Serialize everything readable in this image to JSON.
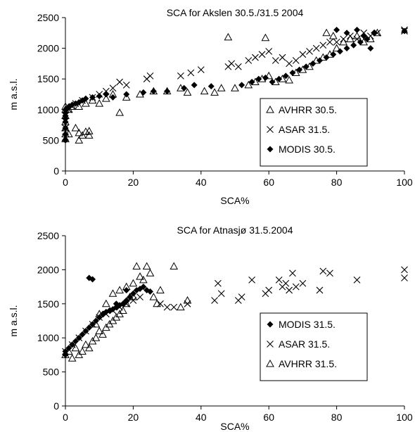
{
  "chart_data": [
    {
      "type": "scatter",
      "title": "SCA for Akslen 30.5./31.5 2004",
      "xlabel": "SCA%",
      "ylabel": "m a.s.l.",
      "xlim": [
        0,
        100
      ],
      "ylim": [
        0,
        2500
      ],
      "xticks": [
        "0",
        "20",
        "40",
        "60",
        "80",
        "100"
      ],
      "yticks": [
        "0",
        "500",
        "1000",
        "1500",
        "2000",
        "2500"
      ],
      "grid": false,
      "legend_placement": "bottom-right",
      "series": [
        {
          "name": "AVHRR 30.5.",
          "marker": "triangle-open",
          "points": [
            [
              0,
              520
            ],
            [
              0,
              600
            ],
            [
              0,
              700
            ],
            [
              0,
              800
            ],
            [
              0,
              900
            ],
            [
              0,
              1000
            ],
            [
              0,
              1050
            ],
            [
              1,
              600
            ],
            [
              1,
              1000
            ],
            [
              2,
              1050
            ],
            [
              3,
              700
            ],
            [
              4,
              500
            ],
            [
              4,
              620
            ],
            [
              5,
              580
            ],
            [
              6,
              640
            ],
            [
              7,
              580
            ],
            [
              7,
              650
            ],
            [
              4,
              1050
            ],
            [
              6,
              1100
            ],
            [
              8,
              1150
            ],
            [
              10,
              1100
            ],
            [
              12,
              1180
            ],
            [
              14,
              1250
            ],
            [
              16,
              950
            ],
            [
              18,
              1200
            ],
            [
              22,
              1250
            ],
            [
              26,
              1300
            ],
            [
              30,
              1300
            ],
            [
              34,
              1350
            ],
            [
              36,
              1280
            ],
            [
              41,
              1300
            ],
            [
              44,
              1280
            ],
            [
              46,
              1350
            ],
            [
              48,
              2180
            ],
            [
              50,
              1350
            ],
            [
              54,
              1400
            ],
            [
              56,
              1450
            ],
            [
              58,
              1500
            ],
            [
              59,
              2170
            ],
            [
              60,
              1550
            ],
            [
              62,
              1450
            ],
            [
              64,
              1500
            ],
            [
              66,
              1480
            ],
            [
              68,
              1600
            ],
            [
              70,
              1650
            ],
            [
              72,
              1700
            ],
            [
              74,
              1800
            ],
            [
              76,
              1850
            ],
            [
              78,
              1900
            ],
            [
              80,
              2000
            ],
            [
              82,
              2100
            ],
            [
              84,
              2150
            ],
            [
              86,
              2200
            ],
            [
              88,
              2100
            ],
            [
              90,
              2150
            ],
            [
              92,
              2250
            ],
            [
              77,
              2250
            ],
            [
              79,
              2200
            ]
          ]
        },
        {
          "name": "ASAR 31.5.",
          "marker": "x",
          "points": [
            [
              0,
              550
            ],
            [
              0,
              700
            ],
            [
              0,
              900
            ],
            [
              1,
              1000
            ],
            [
              2,
              1050
            ],
            [
              3,
              1100
            ],
            [
              5,
              1150
            ],
            [
              8,
              1200
            ],
            [
              10,
              1250
            ],
            [
              12,
              1300
            ],
            [
              14,
              1350
            ],
            [
              16,
              1450
            ],
            [
              18,
              1400
            ],
            [
              24,
              1500
            ],
            [
              25,
              1550
            ],
            [
              34,
              1550
            ],
            [
              37,
              1600
            ],
            [
              40,
              1650
            ],
            [
              48,
              1700
            ],
            [
              49,
              1750
            ],
            [
              51,
              1700
            ],
            [
              54,
              1800
            ],
            [
              56,
              1850
            ],
            [
              58,
              1900
            ],
            [
              60,
              1950
            ],
            [
              62,
              1800
            ],
            [
              64,
              1850
            ],
            [
              66,
              1750
            ],
            [
              68,
              1800
            ],
            [
              70,
              1900
            ],
            [
              72,
              1950
            ],
            [
              74,
              2000
            ],
            [
              76,
              2050
            ],
            [
              78,
              2100
            ],
            [
              80,
              2100
            ],
            [
              82,
              2150
            ],
            [
              84,
              2200
            ],
            [
              86,
              2150
            ],
            [
              88,
              2250
            ],
            [
              90,
              2200
            ],
            [
              92,
              2250
            ],
            [
              100,
              2300
            ],
            [
              100,
              2280
            ]
          ]
        },
        {
          "name": "MODIS 30.5.",
          "marker": "diamond-filled",
          "points": [
            [
              0,
              500
            ],
            [
              0,
              600
            ],
            [
              0,
              700
            ],
            [
              0,
              800
            ],
            [
              0,
              850
            ],
            [
              0,
              900
            ],
            [
              0,
              950
            ],
            [
              0,
              1000
            ],
            [
              1,
              1050
            ],
            [
              2,
              1080
            ],
            [
              3,
              1100
            ],
            [
              4,
              1120
            ],
            [
              5,
              1150
            ],
            [
              6,
              1180
            ],
            [
              8,
              1200
            ],
            [
              10,
              1220
            ],
            [
              12,
              1250
            ],
            [
              14,
              1200
            ],
            [
              18,
              1250
            ],
            [
              23,
              1280
            ],
            [
              26,
              1300
            ],
            [
              30,
              1300
            ],
            [
              35,
              1350
            ],
            [
              38,
              1400
            ],
            [
              43,
              1380
            ],
            [
              52,
              1400
            ],
            [
              55,
              1450
            ],
            [
              57,
              1500
            ],
            [
              59,
              1520
            ],
            [
              61,
              1450
            ],
            [
              63,
              1500
            ],
            [
              65,
              1550
            ],
            [
              67,
              1600
            ],
            [
              69,
              1650
            ],
            [
              71,
              1700
            ],
            [
              73,
              1750
            ],
            [
              75,
              1800
            ],
            [
              77,
              1850
            ],
            [
              79,
              1900
            ],
            [
              81,
              1950
            ],
            [
              83,
              2000
            ],
            [
              85,
              2050
            ],
            [
              87,
              2100
            ],
            [
              89,
              2150
            ],
            [
              80,
              2300
            ],
            [
              83,
              2250
            ],
            [
              86,
              2300
            ],
            [
              88,
              2200
            ],
            [
              90,
              2000
            ],
            [
              91,
              2250
            ],
            [
              100,
              2280
            ]
          ]
        }
      ]
    },
    {
      "type": "scatter",
      "title": "SCA for Atnasjø 31.5.2004",
      "xlabel": "SCA%",
      "ylabel": "m a.s.l.",
      "xlim": [
        0,
        100
      ],
      "ylim": [
        0,
        2500
      ],
      "xticks": [
        "0",
        "20",
        "40",
        "60",
        "80",
        "100"
      ],
      "yticks": [
        "0",
        "500",
        "1000",
        "1500",
        "2000",
        "2500"
      ],
      "grid": false,
      "legend_placement": "bottom-right",
      "series": [
        {
          "name": "MODIS 31.5.",
          "marker": "diamond-filled",
          "points": [
            [
              0,
              750
            ],
            [
              0,
              800
            ],
            [
              1,
              850
            ],
            [
              2,
              900
            ],
            [
              3,
              950
            ],
            [
              4,
              1000
            ],
            [
              5,
              1050
            ],
            [
              6,
              1100
            ],
            [
              7,
              1150
            ],
            [
              8,
              1200
            ],
            [
              9,
              1250
            ],
            [
              10,
              1300
            ],
            [
              11,
              1350
            ],
            [
              12,
              1380
            ],
            [
              13,
              1400
            ],
            [
              14,
              1420
            ],
            [
              15,
              1450
            ],
            [
              16,
              1480
            ],
            [
              17,
              1500
            ],
            [
              18,
              1550
            ],
            [
              19,
              1600
            ],
            [
              20,
              1650
            ],
            [
              21,
              1700
            ],
            [
              22,
              1720
            ],
            [
              23,
              1750
            ],
            [
              24,
              1700
            ],
            [
              25,
              1680
            ],
            [
              7,
              1880
            ],
            [
              8,
              1860
            ],
            [
              15,
              1500
            ],
            [
              18,
              1700
            ]
          ]
        },
        {
          "name": "ASAR 31.5.",
          "marker": "x",
          "points": [
            [
              0,
              800
            ],
            [
              2,
              900
            ],
            [
              4,
              1000
            ],
            [
              6,
              1100
            ],
            [
              8,
              1200
            ],
            [
              10,
              1300
            ],
            [
              12,
              1350
            ],
            [
              14,
              1400
            ],
            [
              16,
              1450
            ],
            [
              18,
              1500
            ],
            [
              20,
              1550
            ],
            [
              22,
              1600
            ],
            [
              28,
              1500
            ],
            [
              30,
              1450
            ],
            [
              32,
              1450
            ],
            [
              36,
              1500
            ],
            [
              44,
              1550
            ],
            [
              45,
              1800
            ],
            [
              46,
              1650
            ],
            [
              51,
              1550
            ],
            [
              52,
              1600
            ],
            [
              55,
              1850
            ],
            [
              59,
              1650
            ],
            [
              60,
              1700
            ],
            [
              63,
              1850
            ],
            [
              64,
              1750
            ],
            [
              65,
              1800
            ],
            [
              66,
              1700
            ],
            [
              67,
              1950
            ],
            [
              68,
              1750
            ],
            [
              70,
              1800
            ],
            [
              75,
              1700
            ],
            [
              76,
              1980
            ],
            [
              78,
              1950
            ],
            [
              86,
              1850
            ],
            [
              100,
              2000
            ],
            [
              100,
              1880
            ]
          ]
        },
        {
          "name": "AVHRR 31.5.",
          "marker": "triangle-open",
          "points": [
            [
              0,
              750
            ],
            [
              1,
              800
            ],
            [
              2,
              700
            ],
            [
              3,
              850
            ],
            [
              4,
              750
            ],
            [
              5,
              800
            ],
            [
              6,
              900
            ],
            [
              7,
              850
            ],
            [
              8,
              950
            ],
            [
              9,
              1000
            ],
            [
              10,
              1100
            ],
            [
              11,
              1050
            ],
            [
              12,
              1150
            ],
            [
              13,
              1200
            ],
            [
              14,
              1250
            ],
            [
              15,
              1300
            ],
            [
              16,
              1350
            ],
            [
              17,
              1400
            ],
            [
              18,
              1500
            ],
            [
              19,
              1600
            ],
            [
              20,
              1800
            ],
            [
              21,
              2050
            ],
            [
              22,
              1900
            ],
            [
              23,
              1850
            ],
            [
              24,
              2050
            ],
            [
              25,
              1950
            ],
            [
              26,
              1600
            ],
            [
              27,
              1500
            ],
            [
              28,
              1700
            ],
            [
              32,
              2050
            ],
            [
              34,
              1450
            ],
            [
              36,
              1550
            ],
            [
              9,
              1200
            ],
            [
              10,
              1350
            ],
            [
              12,
              1500
            ],
            [
              14,
              1650
            ],
            [
              16,
              1700
            ],
            [
              18,
              1750
            ],
            [
              20,
              1600
            ]
          ]
        }
      ]
    }
  ]
}
